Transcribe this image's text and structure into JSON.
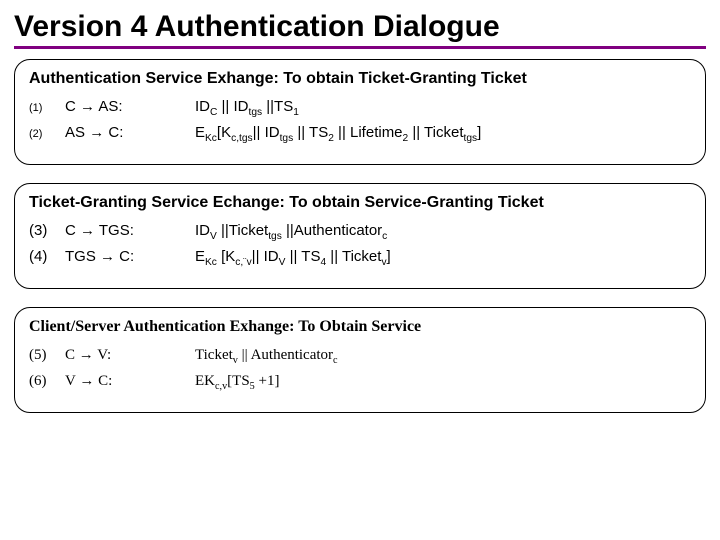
{
  "title": "Version 4 Authentication Dialogue",
  "boxes": [
    {
      "heading": "Authentication Service Exhange: To obtain Ticket-Granting Ticket",
      "font": "sans",
      "rows": [
        {
          "num": "(1)",
          "numSmall": true,
          "lhs": "C → AS:",
          "rhs": "ID<sub>C</sub> || ID<sub>tgs</sub> ||TS<sub>1</sub>"
        },
        {
          "num": "(2)",
          "numSmall": true,
          "lhs": "AS → C:",
          "rhs": "E<sub>Kc</sub>[K<sub>c,tgs</sub>|| ID<sub>tgs</sub> || TS<sub>2</sub> || Lifetime<sub>2</sub> || Ticket<sub>tgs</sub>]"
        }
      ]
    },
    {
      "heading": "Ticket-Granting Service Echange: To obtain Service-Granting Ticket",
      "font": "comic",
      "rows": [
        {
          "num": "(3)",
          "numSmall": false,
          "lhs": "C → TGS:",
          "rhs": "ID<sub>V</sub> ||Ticket<sub>tgs</sub> ||Authenticator<sub>c</sub>"
        },
        {
          "num": "(4)",
          "numSmall": false,
          "lhs": " TGS → C:",
          "rhs": "E<sub>Kc</sub> [K<sub>c,¨v</sub>|| ID<sub>V</sub> || TS<sub>4</sub> || Ticket<sub>v</sub>]"
        }
      ]
    },
    {
      "heading": "Client/Server Authentication Exhange: To Obtain Service",
      "font": "tnr",
      "rows": [
        {
          "num": "(5)",
          "numSmall": false,
          "lhs": "C → V:",
          "rhs": "Ticket<sub>v</sub> || Authenticator<sub>c</sub>"
        },
        {
          "num": "(6)",
          "numSmall": false,
          "lhs": "V → C:",
          "rhs": " EK<sub>c,v</sub>[TS<sub>5</sub> +1]"
        }
      ]
    }
  ],
  "colors": {
    "underline": "#800080",
    "text": "#000000",
    "background": "#ffffff",
    "border": "#000000"
  }
}
